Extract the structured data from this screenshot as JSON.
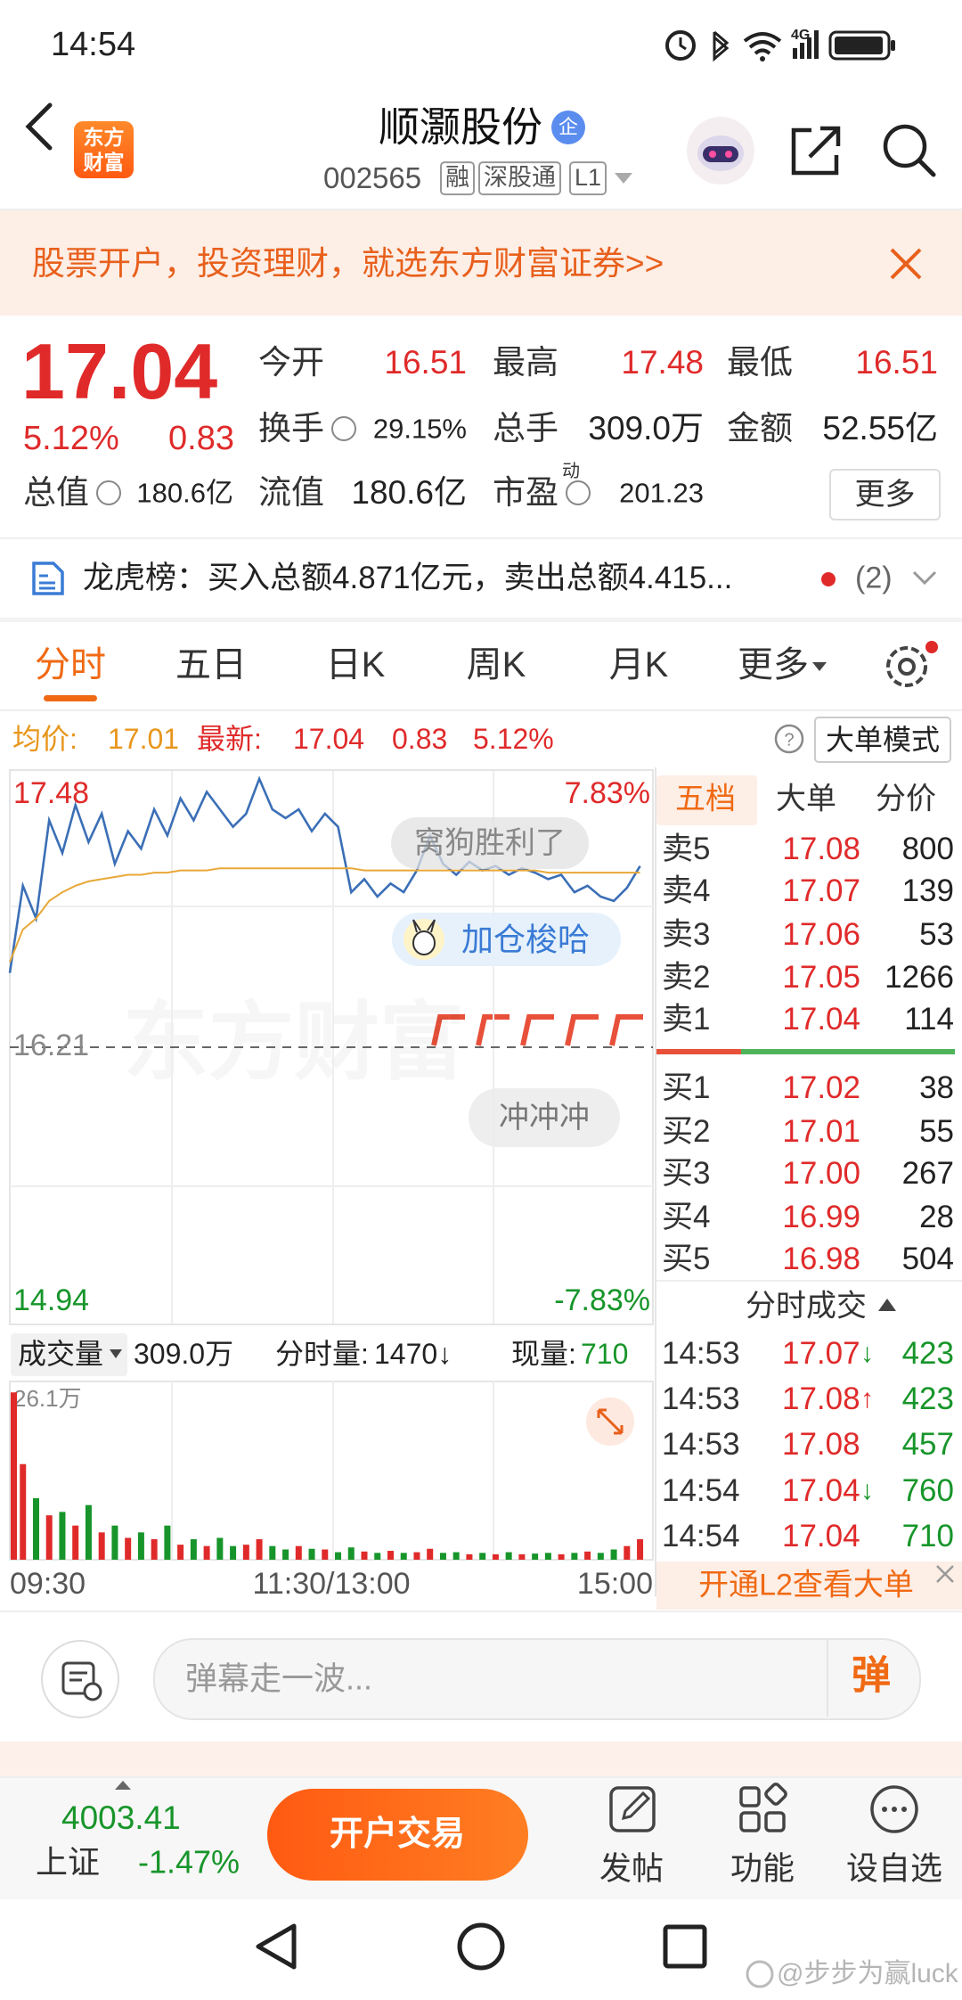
{
  "status": {
    "time": "14:54",
    "network": "4G"
  },
  "header": {
    "logo_lines": [
      "东方",
      "财富"
    ],
    "title": "顺灏股份",
    "badge": "企",
    "code": "002565",
    "tags": [
      "融",
      "深股通",
      "L1"
    ]
  },
  "banner": {
    "text": "股票开户，投资理财，就选东方财富证券>>"
  },
  "quote": {
    "price": "17.04",
    "change_pct": "5.12%",
    "change": "0.83",
    "fields": [
      {
        "label": "今开",
        "value": "16.51"
      },
      {
        "label": "最高",
        "value": "17.48"
      },
      {
        "label": "最低",
        "value": "16.51"
      },
      {
        "label": "换手",
        "value": "29.15%"
      },
      {
        "label": "总手",
        "value": "309.0万"
      },
      {
        "label": "金额",
        "value": "52.55亿"
      },
      {
        "label": "总值",
        "value": "180.6亿"
      },
      {
        "label": "流值",
        "value": "180.6亿"
      },
      {
        "label": "市盈",
        "sup": "动",
        "value": "201.23"
      }
    ],
    "more": "更多"
  },
  "longhu": {
    "text": "龙虎榜：买入总额4.871亿元，卖出总额4.415...",
    "count": "(2)"
  },
  "tabs": {
    "items": [
      "分时",
      "五日",
      "日K",
      "周K",
      "月K",
      "更多"
    ],
    "active": 0
  },
  "info": {
    "avg_label": "均价:",
    "avg": "17.01",
    "latest_label": "最新:",
    "latest": "17.04",
    "change": "0.83",
    "change_pct": "5.12%",
    "mode": "大单模式"
  },
  "chart_data": {
    "type": "line",
    "ylim": [
      14.94,
      17.48
    ],
    "yticks": [
      17.48,
      16.21,
      14.94
    ],
    "y2lim": [
      -7.83,
      7.83
    ],
    "y2ticks": [
      {
        "value": 7.83,
        "label": "7.83%"
      },
      {
        "value": -7.83,
        "label": "-7.83%"
      }
    ],
    "xticks": [
      "09:30",
      "11:30/13:00",
      "15:00"
    ],
    "series": [
      {
        "color": "#3b6fb6",
        "values": [
          16.55,
          16.95,
          16.8,
          17.25,
          17.1,
          17.32,
          17.15,
          17.28,
          17.05,
          17.2,
          17.12,
          17.3,
          17.18,
          17.35,
          17.25,
          17.38,
          17.3,
          17.22,
          17.28,
          17.44,
          17.3,
          17.26,
          17.3,
          17.2,
          17.28,
          17.22,
          16.92,
          16.98,
          16.9,
          16.96,
          16.92,
          17.02,
          17.18,
          17.05,
          17.0,
          17.06,
          17.02,
          17.04,
          17.0,
          17.03,
          17.01,
          16.98,
          17.0,
          16.92,
          16.95,
          16.9,
          16.88,
          16.94,
          17.04
        ]
      },
      {
        "color": "#e8a838",
        "values": [
          16.6,
          16.75,
          16.8,
          16.88,
          16.92,
          16.95,
          16.97,
          16.98,
          16.99,
          17.0,
          17.0,
          17.01,
          17.01,
          17.02,
          17.02,
          17.02,
          17.03,
          17.03,
          17.03,
          17.03,
          17.03,
          17.03,
          17.03,
          17.03,
          17.03,
          17.03,
          17.03,
          17.02,
          17.02,
          17.02,
          17.02,
          17.02,
          17.02,
          17.02,
          17.02,
          17.02,
          17.02,
          17.02,
          17.02,
          17.02,
          17.02,
          17.01,
          17.01,
          17.01,
          17.01,
          17.01,
          17.01,
          17.01,
          17.01
        ]
      }
    ],
    "watermark": "东方财富",
    "danmaku": [
      "窝狗胜利了",
      "加仓梭哈",
      "冲冲冲"
    ]
  },
  "volume": {
    "label": "成交量",
    "total": "309.0万",
    "minute_label": "分时量:",
    "minute": "1470↓",
    "current_label": "现量:",
    "current": "710",
    "ylim": [
      0,
      26.1
    ],
    "yticks": [
      {
        "value": 26.1,
        "label": "26.1万"
      }
    ],
    "up_color": "#e02a2a",
    "down_color": "#17952a",
    "values": [
      24.5,
      14,
      9,
      6.5,
      7,
      5,
      8,
      4,
      5,
      3.2,
      4,
      3,
      5,
      2.2,
      3,
      2,
      3.2,
      2,
      2.2,
      3,
      2,
      1.5,
      2,
      1.6,
      1.5,
      1.1,
      1.8,
      1.2,
      1,
      1.3,
      1,
      1.1,
      1.6,
      1,
      1.1,
      0.8,
      1,
      0.8,
      1.1,
      0.8,
      0.9,
      1,
      0.8,
      1,
      1.2,
      1,
      1.5,
      2,
      3
    ]
  },
  "order_book": {
    "tabs": [
      "五档",
      "大单",
      "分价"
    ],
    "asks": [
      {
        "label": "卖5",
        "price": "17.08",
        "volume": "800"
      },
      {
        "label": "卖4",
        "price": "17.07",
        "volume": "139"
      },
      {
        "label": "卖3",
        "price": "17.06",
        "volume": "53"
      },
      {
        "label": "卖2",
        "price": "17.05",
        "volume": "1266"
      },
      {
        "label": "卖1",
        "price": "17.04",
        "volume": "114"
      }
    ],
    "bids": [
      {
        "label": "买1",
        "price": "17.02",
        "volume": "38"
      },
      {
        "label": "买2",
        "price": "17.01",
        "volume": "55"
      },
      {
        "label": "买3",
        "price": "17.00",
        "volume": "267"
      },
      {
        "label": "买4",
        "price": "16.99",
        "volume": "28"
      },
      {
        "label": "买5",
        "price": "16.98",
        "volume": "504"
      }
    ],
    "trades_title": "分时成交",
    "trades": [
      {
        "time": "14:53",
        "price": "17.07",
        "dir": "↓",
        "volume": "423"
      },
      {
        "time": "14:53",
        "price": "17.08",
        "dir": "↑",
        "volume": "423"
      },
      {
        "time": "14:53",
        "price": "17.08",
        "volume": "457"
      },
      {
        "time": "14:54",
        "price": "17.04",
        "dir": "↓",
        "volume": "760"
      },
      {
        "time": "14:54",
        "price": "17.04",
        "volume": "710"
      }
    ],
    "l2": "开通L2查看大单"
  },
  "comment": {
    "placeholder": "弹幕走一波...",
    "button": "弹"
  },
  "bottom": {
    "index_value": "4003.41",
    "index_name": "上证",
    "index_change": "-1.47%",
    "trade": "开户交易",
    "nav": [
      "发帖",
      "功能",
      "设自选"
    ]
  },
  "watermark": "@步步为赢luck"
}
